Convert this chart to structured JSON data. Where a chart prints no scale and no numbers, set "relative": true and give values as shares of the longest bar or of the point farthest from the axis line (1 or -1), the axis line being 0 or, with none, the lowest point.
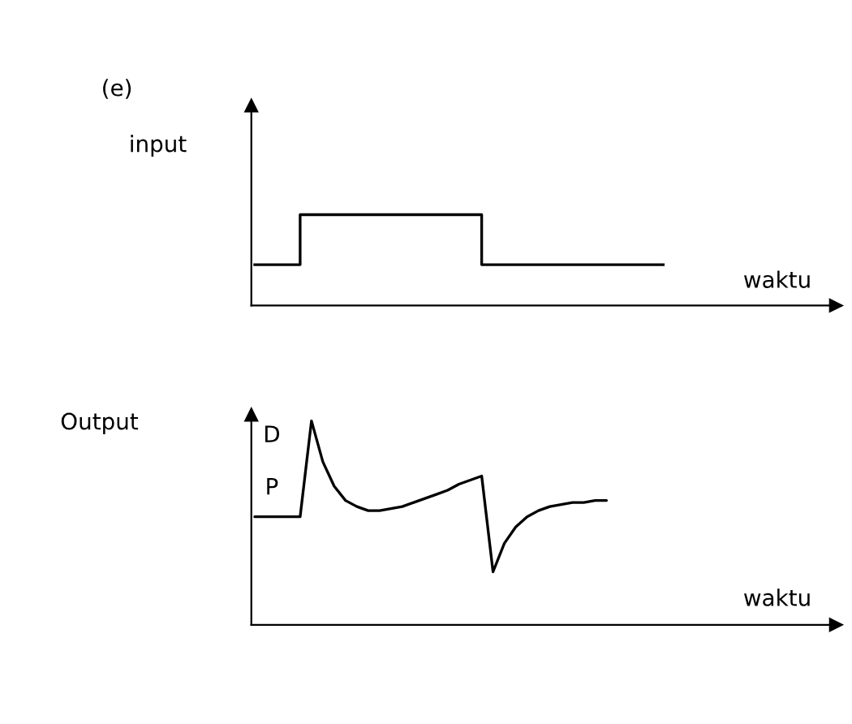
{
  "chart_data": [
    {
      "type": "step",
      "title": "(e)",
      "ylabel": "input",
      "xlabel": "waktu",
      "relative": true,
      "categories": [
        null,
        null,
        null,
        null,
        null,
        null,
        null,
        null,
        null,
        null,
        null,
        null,
        null,
        null,
        null,
        null,
        null,
        null,
        null,
        null,
        null,
        null,
        null,
        null,
        null,
        null,
        null,
        null,
        null,
        null,
        null,
        null,
        null,
        null,
        null,
        null,
        null
      ],
      "series": [
        {
          "color": "#000000",
          "values": [
            0.45,
            0.45,
            0.45,
            0.45,
            1,
            1,
            1,
            1,
            1,
            1,
            1,
            1,
            1,
            1,
            1,
            1,
            1,
            1,
            1,
            1,
            0.45,
            0.45,
            0.45,
            0.45,
            0.45,
            0.45,
            0.45,
            0.45,
            0.45,
            0.45,
            0.45,
            0.45,
            0.45,
            0.45,
            0.45,
            0.45,
            0.45
          ]
        }
      ]
    },
    {
      "type": "line",
      "ylabel": "Output",
      "xlabel": "waktu",
      "relative": true,
      "annotations": [
        "D",
        "P"
      ],
      "categories": [
        null,
        null,
        null,
        null,
        null,
        null,
        null,
        null,
        null,
        null,
        null,
        null,
        null,
        null,
        null,
        null,
        null,
        null,
        null,
        null,
        null,
        null,
        null,
        null,
        null,
        null,
        null,
        null,
        null,
        null,
        null,
        null,
        null,
        null,
        null,
        null,
        null
      ],
      "series": [
        {
          "color": "#000000",
          "values": [
            0.53,
            0.53,
            0.53,
            0.53,
            0.53,
            1,
            0.8,
            0.68,
            0.61,
            0.58,
            0.56,
            0.56,
            0.57,
            0.58,
            0.6,
            0.62,
            0.64,
            0.66,
            0.69,
            0.71,
            0.73,
            0.26,
            0.4,
            0.48,
            0.53,
            0.56,
            0.58,
            0.59,
            0.6,
            0.6,
            0.61,
            0.61,
            null,
            null,
            null,
            null,
            null
          ]
        }
      ]
    }
  ]
}
